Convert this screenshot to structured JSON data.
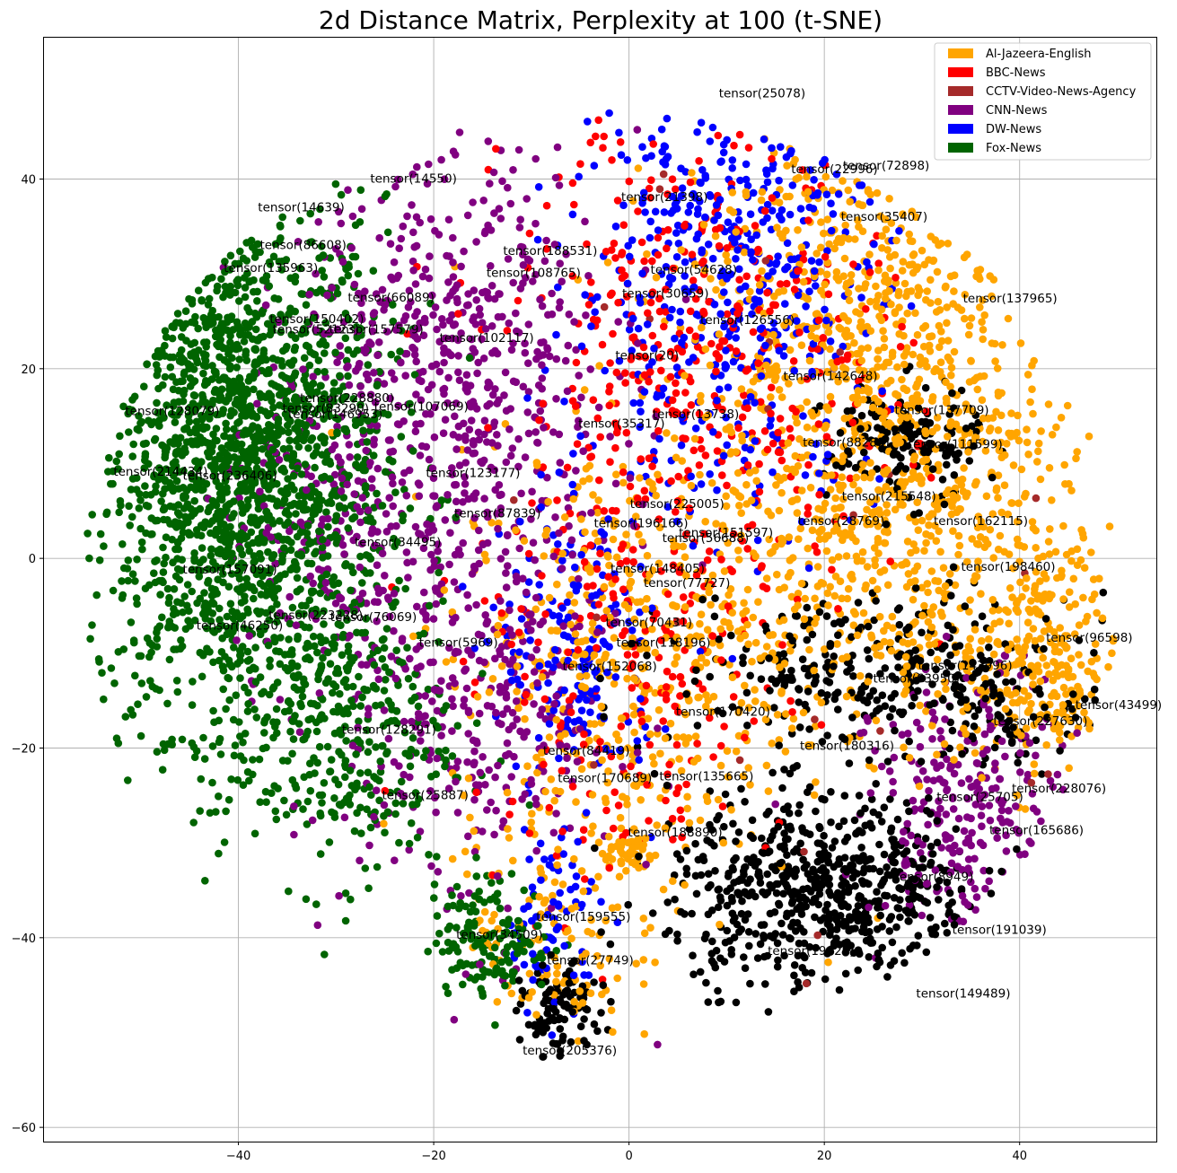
{
  "chart_data": {
    "type": "scatter",
    "title": "2d Distance Matrix, Perplexity at 100 (t-SNE)",
    "xlabel": "",
    "ylabel": "",
    "xlim": [
      -60,
      54
    ],
    "ylim": [
      -61.5,
      55
    ],
    "xticks": [
      -40,
      -20,
      0,
      20,
      40
    ],
    "yticks": [
      -60,
      -40,
      -20,
      0,
      20,
      40
    ],
    "xtick_labels": [
      "−40",
      "−20",
      "0",
      "20",
      "40"
    ],
    "ytick_labels": [
      "−60",
      "−40",
      "−20",
      "0",
      "20",
      "40"
    ],
    "grid": true,
    "legend_position": "top-right",
    "series": [
      {
        "name": "Al-Jazeera-English",
        "color": "#ffa500"
      },
      {
        "name": "BBC-News",
        "color": "#ff0000"
      },
      {
        "name": "CCTV-Video-News-Agency",
        "color": "#a52a2a"
      },
      {
        "name": "CNN-News",
        "color": "#800080"
      },
      {
        "name": "DW-News",
        "color": "#0000ff"
      },
      {
        "name": "Fox-News",
        "color": "#006400"
      }
    ],
    "unlabeled_series_color": "#000000",
    "clusters": [
      {
        "series": "Fox-News",
        "cx": -40,
        "cy": 10,
        "sx": 7.5,
        "sy": 14,
        "n": 1800
      },
      {
        "series": "Fox-News",
        "cx": -30,
        "cy": -18,
        "sx": 6,
        "sy": 8,
        "n": 350
      },
      {
        "series": "Fox-News",
        "cx": -14,
        "cy": -40,
        "sx": 3,
        "sy": 3,
        "n": 150
      },
      {
        "series": "CNN-News",
        "cx": -18,
        "cy": 20,
        "sx": 8,
        "sy": 12,
        "n": 550
      },
      {
        "series": "CNN-News",
        "cx": -15,
        "cy": -15,
        "sx": 7,
        "sy": 12,
        "n": 350
      },
      {
        "series": "CNN-News",
        "cx": 35,
        "cy": -28,
        "sx": 5,
        "sy": 8,
        "n": 250
      },
      {
        "series": "CNN-News",
        "cx": -28,
        "cy": 5,
        "sx": 7,
        "sy": 12,
        "n": 200
      },
      {
        "series": "DW-News",
        "cx": 10,
        "cy": 30,
        "sx": 8,
        "sy": 12,
        "n": 450
      },
      {
        "series": "DW-News",
        "cx": -5,
        "cy": -10,
        "sx": 4,
        "sy": 8,
        "n": 180
      },
      {
        "series": "DW-News",
        "cx": -8,
        "cy": -38,
        "sx": 2.5,
        "sy": 5,
        "n": 70
      },
      {
        "series": "BBC-News",
        "cx": 8,
        "cy": 20,
        "sx": 10,
        "sy": 14,
        "n": 450
      },
      {
        "series": "BBC-News",
        "cx": 0,
        "cy": -15,
        "sx": 8,
        "sy": 10,
        "n": 180
      },
      {
        "series": "Al-Jazeera-English",
        "cx": 25,
        "cy": 25,
        "sx": 10,
        "sy": 12,
        "n": 650
      },
      {
        "series": "Al-Jazeera-English",
        "cx": 28,
        "cy": 2,
        "sx": 10,
        "sy": 10,
        "n": 600
      },
      {
        "series": "Al-Jazeera-English",
        "cx": 42,
        "cy": -12,
        "sx": 4,
        "sy": 6,
        "n": 220
      },
      {
        "series": "Al-Jazeera-English",
        "cx": 0,
        "cy": -12,
        "sx": 9,
        "sy": 12,
        "n": 500
      },
      {
        "series": "Al-Jazeera-English",
        "cx": 0,
        "cy": -31,
        "sx": 1.2,
        "sy": 1.2,
        "n": 40
      },
      {
        "series": "Al-Jazeera-English",
        "cx": -8,
        "cy": -40,
        "sx": 4,
        "sy": 6,
        "n": 100
      },
      {
        "series": "unlabeled",
        "cx": 20,
        "cy": -35,
        "sx": 8,
        "sy": 5,
        "n": 650
      },
      {
        "series": "unlabeled",
        "cx": 25,
        "cy": -12,
        "sx": 10,
        "sy": 4,
        "n": 300
      },
      {
        "series": "unlabeled",
        "cx": 28,
        "cy": 12,
        "sx": 4,
        "sy": 3,
        "n": 150
      },
      {
        "series": "unlabeled",
        "cx": -7,
        "cy": -48,
        "sx": 2,
        "sy": 2.5,
        "n": 100
      },
      {
        "series": "unlabeled",
        "cx": -13.5,
        "cy": -54,
        "sx": 0.6,
        "sy": 0.5,
        "n": 120
      },
      {
        "series": "unlabeled",
        "cx": 40,
        "cy": -17,
        "sx": 4,
        "sy": 3,
        "n": 60
      },
      {
        "series": "CCTV-Video-News-Agency",
        "cx": 15,
        "cy": 5,
        "sx": 20,
        "sy": 25,
        "n": 25
      }
    ],
    "annotations": [
      {
        "text": "tensor(25078)",
        "x": 9.2,
        "y": 48.6
      },
      {
        "text": "tensor(14550)",
        "x": -26.5,
        "y": 39.6
      },
      {
        "text": "tensor(14639)",
        "x": -38,
        "y": 36.6
      },
      {
        "text": "tensor(22996)",
        "x": 16.6,
        "y": 40.6
      },
      {
        "text": "tensor(72898)",
        "x": 21.9,
        "y": 41.0
      },
      {
        "text": "tensor(21398)",
        "x": -0.8,
        "y": 37.7
      },
      {
        "text": "tensor(35407)",
        "x": 21.7,
        "y": 35.6
      },
      {
        "text": "tensor(86608)",
        "x": -37.8,
        "y": 32.6
      },
      {
        "text": "tensor(188531)",
        "x": -12.9,
        "y": 32.0
      },
      {
        "text": "tensor(135963)",
        "x": -41.5,
        "y": 30.2
      },
      {
        "text": "tensor(108765)",
        "x": -14.6,
        "y": 29.7
      },
      {
        "text": "tensor(54628)",
        "x": 2.2,
        "y": 30.0
      },
      {
        "text": "tensor(66089)",
        "x": -28.8,
        "y": 27.1
      },
      {
        "text": "tensor(30659)",
        "x": -0.7,
        "y": 27.5
      },
      {
        "text": "tensor(137965)",
        "x": 34.2,
        "y": 27.0
      },
      {
        "text": "tensor(150402)",
        "x": -36.8,
        "y": 24.8
      },
      {
        "text": "tensor(126556)",
        "x": 7.3,
        "y": 24.7
      },
      {
        "text": "tensor(52123)",
        "x": -36.5,
        "y": 23.7
      },
      {
        "text": "tensor(157579)",
        "x": -30.7,
        "y": 23.7
      },
      {
        "text": "tensor(102117)",
        "x": -19.4,
        "y": 22.8
      },
      {
        "text": "tensor(20)",
        "x": -1.4,
        "y": 21.0
      },
      {
        "text": "tensor(142648)",
        "x": 15.8,
        "y": 18.8
      },
      {
        "text": "tensor(228880)",
        "x": -33.7,
        "y": 16.5
      },
      {
        "text": "tensor(83290)",
        "x": -35.5,
        "y": 15.4
      },
      {
        "text": "tensor(107069)",
        "x": -26.1,
        "y": 15.6
      },
      {
        "text": "tensor(128079)",
        "x": -51.6,
        "y": 15.1
      },
      {
        "text": "tensor(146953)",
        "x": -34.9,
        "y": 14.8
      },
      {
        "text": "tensor(137709)",
        "x": 27.2,
        "y": 15.2
      },
      {
        "text": "tensor(13738)",
        "x": 2.4,
        "y": 14.8
      },
      {
        "text": "tensor(35317)",
        "x": -5.2,
        "y": 13.8
      },
      {
        "text": "tensor(88288)",
        "x": 17.8,
        "y": 11.8
      },
      {
        "text": "tensor(111599)",
        "x": 28.6,
        "y": 11.6
      },
      {
        "text": "tensor(214434)",
        "x": -52.8,
        "y": 8.7
      },
      {
        "text": "tensor(236406)",
        "x": -45.7,
        "y": 8.3
      },
      {
        "text": "tensor(123177)",
        "x": -20.8,
        "y": 8.6
      },
      {
        "text": "tensor(215548)",
        "x": 21.8,
        "y": 6.1
      },
      {
        "text": "tensor(225005)",
        "x": 0.1,
        "y": 5.3
      },
      {
        "text": "tensor(87839)",
        "x": -17.9,
        "y": 4.3
      },
      {
        "text": "tensor(196166)",
        "x": -3.6,
        "y": 3.3
      },
      {
        "text": "tensor(28769)",
        "x": 17.3,
        "y": 3.5
      },
      {
        "text": "tensor(162115)",
        "x": 31.2,
        "y": 3.5
      },
      {
        "text": "tensor(151597)",
        "x": 5.1,
        "y": 2.3
      },
      {
        "text": "tensor(56688)",
        "x": 3.4,
        "y": 1.7
      },
      {
        "text": "tensor(34495)",
        "x": -28.1,
        "y": 1.3
      },
      {
        "text": "tensor(148405)",
        "x": -1.9,
        "y": -1.5
      },
      {
        "text": "tensor(198460)",
        "x": 34.0,
        "y": -1.3
      },
      {
        "text": "tensor(157091)",
        "x": -45.7,
        "y": -1.6
      },
      {
        "text": "tensor(77727)",
        "x": 1.5,
        "y": -3.0
      },
      {
        "text": "tensor(223228)",
        "x": -36.9,
        "y": -6.4
      },
      {
        "text": "tensor(76069)",
        "x": -30.6,
        "y": -6.6
      },
      {
        "text": "tensor(70431)",
        "x": -2.4,
        "y": -7.2
      },
      {
        "text": "tensor(46250)",
        "x": -44.3,
        "y": -7.5
      },
      {
        "text": "tensor(96598)",
        "x": 42.7,
        "y": -8.8
      },
      {
        "text": "tensor(5969)",
        "x": -21.5,
        "y": -9.3
      },
      {
        "text": "tensor(118196)",
        "x": -1.3,
        "y": -9.3
      },
      {
        "text": "tensor(152068)",
        "x": -6.8,
        "y": -11.8
      },
      {
        "text": "tensor(143996)",
        "x": 29.6,
        "y": -11.7
      },
      {
        "text": "tensor(63950)",
        "x": 25.0,
        "y": -13.1
      },
      {
        "text": "tensor(43499)",
        "x": 45.7,
        "y": -15.9
      },
      {
        "text": "tensor(170420)",
        "x": 4.8,
        "y": -16.6
      },
      {
        "text": "tensor(227630)",
        "x": 37.3,
        "y": -17.6
      },
      {
        "text": "tensor(128291)",
        "x": -29.4,
        "y": -18.5
      },
      {
        "text": "tensor(180316)",
        "x": 17.5,
        "y": -20.2
      },
      {
        "text": "tensor(84419)",
        "x": -8.8,
        "y": -20.7
      },
      {
        "text": "tensor(170689)",
        "x": -7.3,
        "y": -23.6
      },
      {
        "text": "tensor(135665)",
        "x": 3.1,
        "y": -23.4
      },
      {
        "text": "tensor(228076)",
        "x": 39.2,
        "y": -24.7
      },
      {
        "text": "tensor(25887)",
        "x": -25.3,
        "y": -25.4
      },
      {
        "text": "tensor(25705)",
        "x": 31.5,
        "y": -25.6
      },
      {
        "text": "tensor(165686)",
        "x": 36.9,
        "y": -29.1
      },
      {
        "text": "tensor(188890)",
        "x": -0.1,
        "y": -29.3
      },
      {
        "text": "tensor(8949)",
        "x": 27.2,
        "y": -34.0
      },
      {
        "text": "tensor(191039)",
        "x": 33.1,
        "y": -39.6
      },
      {
        "text": "tensor(159555)",
        "x": -9.5,
        "y": -38.2
      },
      {
        "text": "tensor(34509)",
        "x": -17.7,
        "y": -40.1
      },
      {
        "text": "tensor(19829)",
        "x": 14.2,
        "y": -41.8
      },
      {
        "text": "tensor(27749)",
        "x": -8.4,
        "y": -42.8
      },
      {
        "text": "tensor(149489)",
        "x": 29.4,
        "y": -46.3
      },
      {
        "text": "tensor(205376)",
        "x": -10.9,
        "y": -52.3
      }
    ]
  }
}
